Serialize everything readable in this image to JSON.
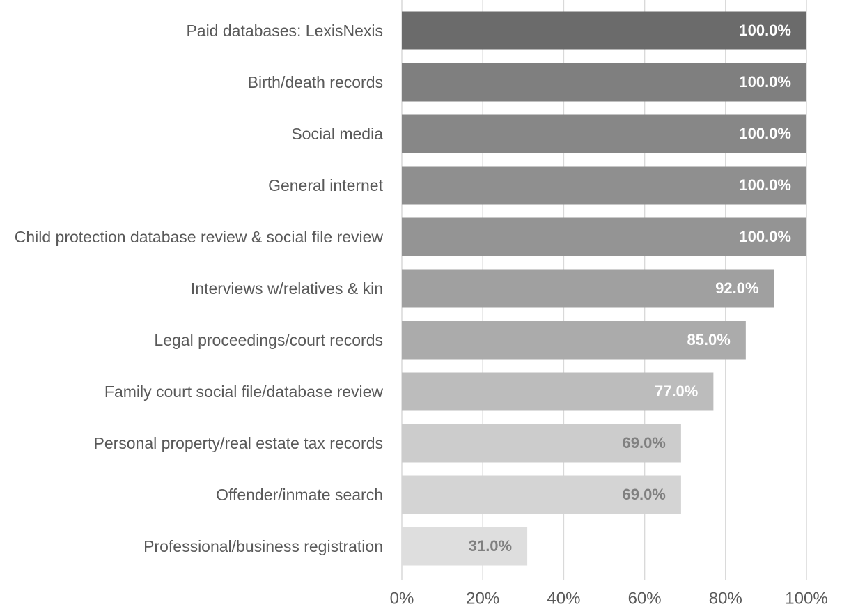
{
  "chart_data": {
    "type": "barh",
    "categories": [
      "Paid databases: LexisNexis",
      "Birth/death records",
      "Social media",
      "General internet",
      "Child protection database review & social file review",
      "Interviews w/relatives & kin",
      "Legal proceedings/court records",
      "Family court social file/database review",
      "Personal property/real estate tax records",
      "Offender/inmate search",
      "Professional/business registration"
    ],
    "values": [
      100,
      100,
      100,
      100,
      100,
      92,
      85,
      77,
      69,
      69,
      31
    ],
    "value_labels": [
      "100.0%",
      "100.0%",
      "100.0%",
      "100.0%",
      "100.0%",
      "92.0%",
      "85.0%",
      "77.0%",
      "69.0%",
      "69.0%",
      "31.0%"
    ],
    "colors": [
      "#6b6b6b",
      "#7f7f7f",
      "#878787",
      "#8f8f8f",
      "#949494",
      "#a0a0a0",
      "#ababab",
      "#bcbcbc",
      "#cccccc",
      "#d4d4d4",
      "#dedede"
    ],
    "label_colors": [
      "#ffffff",
      "#ffffff",
      "#ffffff",
      "#ffffff",
      "#ffffff",
      "#ffffff",
      "#ffffff",
      "#ffffff",
      "#808080",
      "#808080",
      "#808080"
    ],
    "xlim": [
      0,
      100
    ],
    "xticks": [
      {
        "value": 0,
        "label": "0%"
      },
      {
        "value": 20,
        "label": "20%"
      },
      {
        "value": 40,
        "label": "40%"
      },
      {
        "value": 60,
        "label": "60%"
      },
      {
        "value": 80,
        "label": "80%"
      },
      {
        "value": 100,
        "label": "100%"
      }
    ],
    "grid": true
  }
}
